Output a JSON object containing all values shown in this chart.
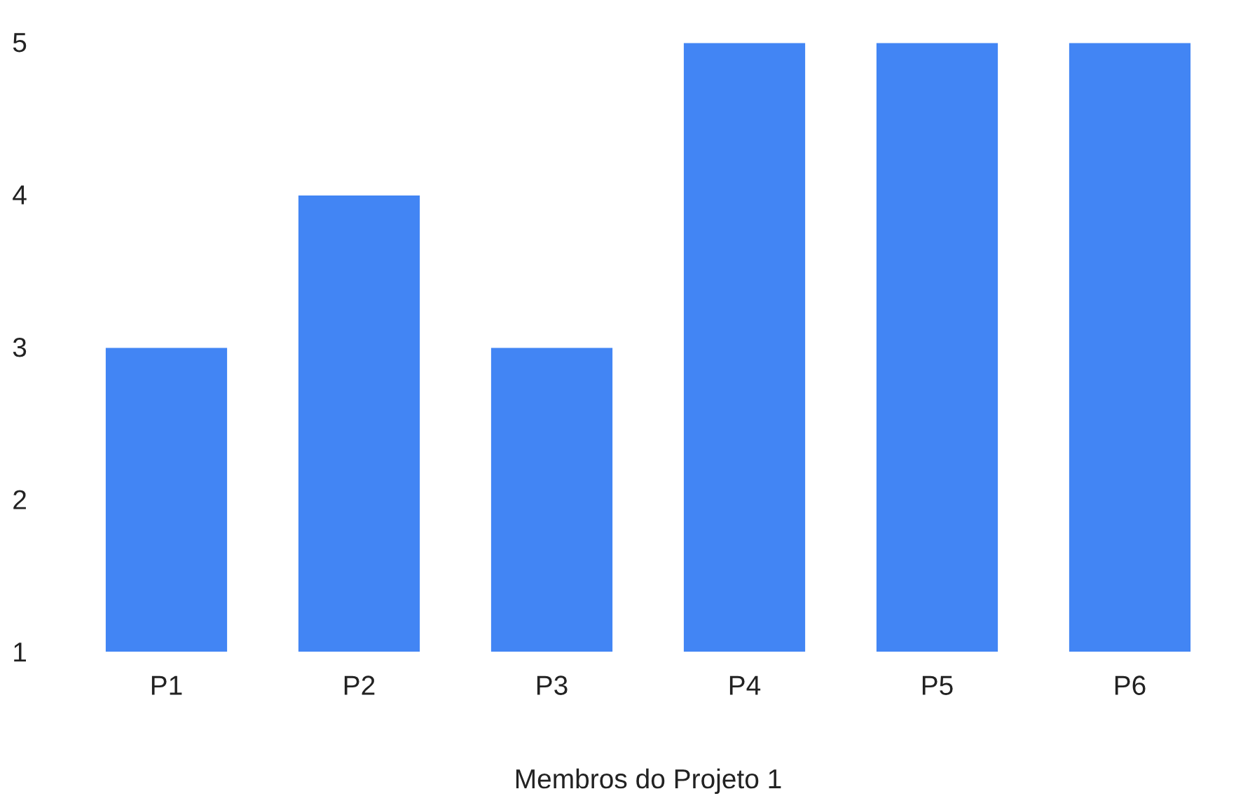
{
  "chart_data": {
    "type": "bar",
    "xlabel": "Membros do Projeto 1",
    "categories": [
      "P1",
      "P2",
      "P3",
      "P4",
      "P5",
      "P6"
    ],
    "series": [
      {
        "color": "#4285f4",
        "values": [
          3,
          4,
          3,
          5,
          5,
          5
        ]
      }
    ],
    "ylim": [
      1,
      5
    ],
    "yticks": [
      1,
      2,
      3,
      4,
      5
    ]
  }
}
